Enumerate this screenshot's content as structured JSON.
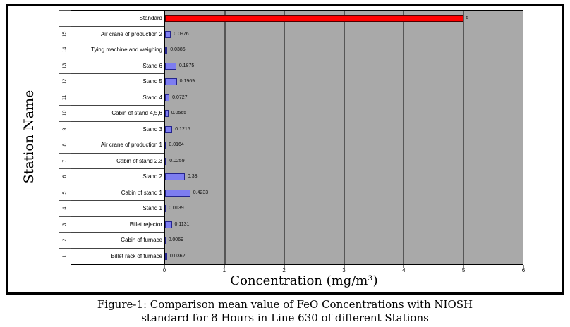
{
  "figure": {
    "caption_line1": "Figure-1: Comparison mean value of FeO Concentrations with NIOSH",
    "caption_line2": "standard for 8 Hours in Line 630 of different Stations"
  },
  "chart": {
    "y_axis_title": "Station Name",
    "x_axis_title": "Concentration  (mg/m³)",
    "x_ticks": [
      "0",
      "1",
      "2",
      "3",
      "4",
      "5",
      "6"
    ],
    "x_max": 6,
    "colors": {
      "plot_background": "#a9a9a9",
      "gridline": "#565656",
      "station_bar_fill": "#7d7df0",
      "station_bar_border": "#24248c",
      "standard_bar_fill": "#ff0000",
      "standard_bar_border": "#4d0000"
    },
    "rows": [
      {
        "number": "",
        "label": "Standard",
        "value": 5,
        "value_label": "5",
        "type": "standard"
      },
      {
        "number": "15",
        "label": "Air crane of production 2",
        "value": 0.0976,
        "value_label": "0.0976",
        "type": "station"
      },
      {
        "number": "14",
        "label": "Tying machine and weighing",
        "value": 0.0386,
        "value_label": "0.0386",
        "type": "station"
      },
      {
        "number": "13",
        "label": "Stand 6",
        "value": 0.1875,
        "value_label": "0.1875",
        "type": "station"
      },
      {
        "number": "12",
        "label": "Stand 5",
        "value": 0.1969,
        "value_label": "0.1969",
        "type": "station"
      },
      {
        "number": "11",
        "label": "Stand 4",
        "value": 0.0727,
        "value_label": "0.0727",
        "type": "station"
      },
      {
        "number": "10",
        "label": "Cabin of stand 4,5,6",
        "value": 0.0565,
        "value_label": "0.0565",
        "type": "station"
      },
      {
        "number": "9",
        "label": "Stand 3",
        "value": 0.1215,
        "value_label": "0.1215",
        "type": "station"
      },
      {
        "number": "8",
        "label": "Air crane of production 1",
        "value": 0.0164,
        "value_label": "0.0164",
        "type": "station"
      },
      {
        "number": "7",
        "label": "Cabin of stand 2,3",
        "value": 0.0259,
        "value_label": "0.0259",
        "type": "station"
      },
      {
        "number": "6",
        "label": "Stand 2",
        "value": 0.33,
        "value_label": "0.33",
        "type": "station"
      },
      {
        "number": "5",
        "label": "Cabin of stand 1",
        "value": 0.4233,
        "value_label": "0.4233",
        "type": "station"
      },
      {
        "number": "4",
        "label": "Stand 1",
        "value": 0.0139,
        "value_label": "0.0139",
        "type": "station"
      },
      {
        "number": "3",
        "label": "Billet rejector",
        "value": 0.1131,
        "value_label": "0.1131",
        "type": "station"
      },
      {
        "number": "2",
        "label": "Cabin of furnace",
        "value": 0.0069,
        "value_label": "0.0069",
        "type": "station"
      },
      {
        "number": "1",
        "label": "Billet rack of furnace",
        "value": 0.0362,
        "value_label": "0.0362",
        "type": "station"
      }
    ]
  },
  "chart_data": {
    "type": "bar",
    "orientation": "horizontal",
    "title": "",
    "xlabel": "Concentration (mg/m³)",
    "ylabel": "Station Name",
    "xlim": [
      0,
      6
    ],
    "xticks": [
      0,
      1,
      2,
      3,
      4,
      5,
      6
    ],
    "grid": "vertical gridlines at each integer",
    "legend_position": "none",
    "categories": [
      "Standard",
      "Air crane of production 2",
      "Tying machine and weighing",
      "Stand 6",
      "Stand 5",
      "Stand 4",
      "Cabin of stand 4,5,6",
      "Stand 3",
      "Air crane of production 1",
      "Cabin of stand 2,3",
      "Stand 2",
      "Cabin of stand 1",
      "Stand 1",
      "Billet rejector",
      "Cabin of furnace",
      "Billet rack of furnace"
    ],
    "station_numbers": [
      "",
      "15",
      "14",
      "13",
      "12",
      "11",
      "10",
      "9",
      "8",
      "7",
      "6",
      "5",
      "4",
      "3",
      "2",
      "1"
    ],
    "values": [
      5,
      0.0976,
      0.0386,
      0.1875,
      0.1969,
      0.0727,
      0.0565,
      0.1215,
      0.0164,
      0.0259,
      0.33,
      0.4233,
      0.0139,
      0.1131,
      0.0069,
      0.0362
    ],
    "series_colors": {
      "Standard": "#ff0000",
      "stations": "#7d7df0"
    }
  }
}
